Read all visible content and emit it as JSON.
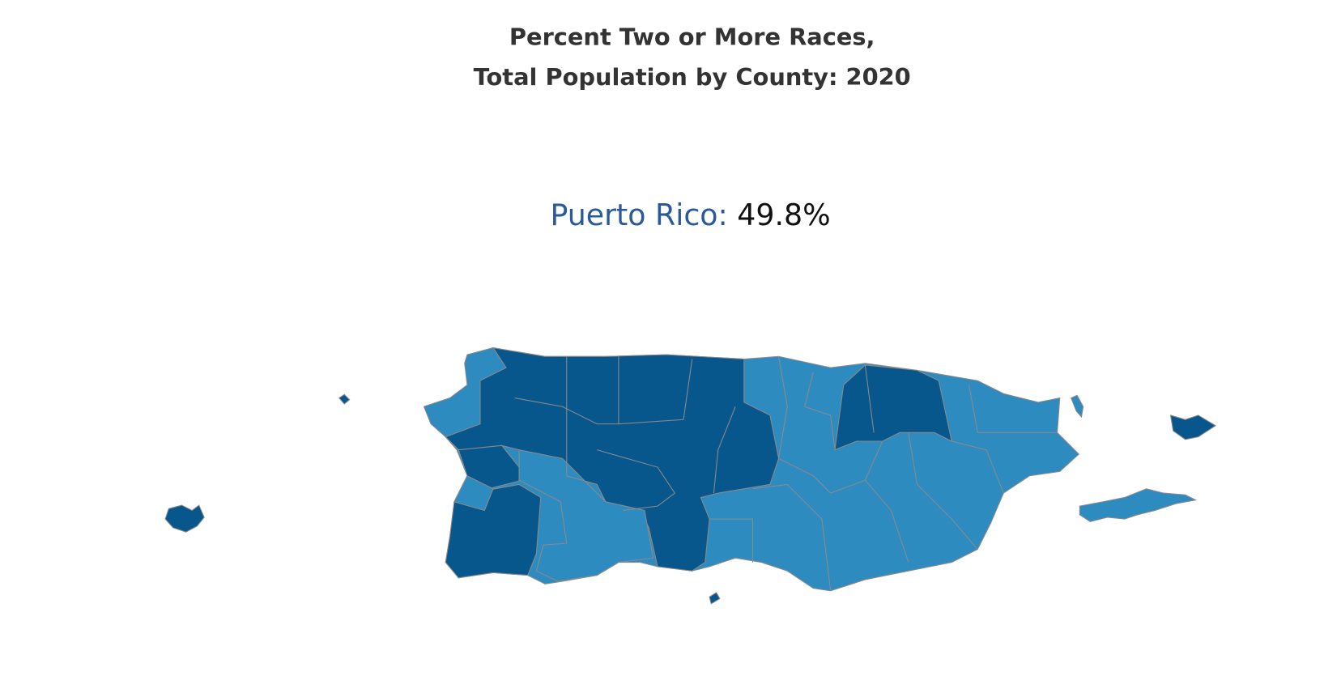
{
  "header": {
    "title_lines": [
      "Percent Two or More Races,",
      "Total Population by County: 2020"
    ]
  },
  "summary": {
    "label": "Puerto Rico:",
    "value": "49.8%"
  }
}
